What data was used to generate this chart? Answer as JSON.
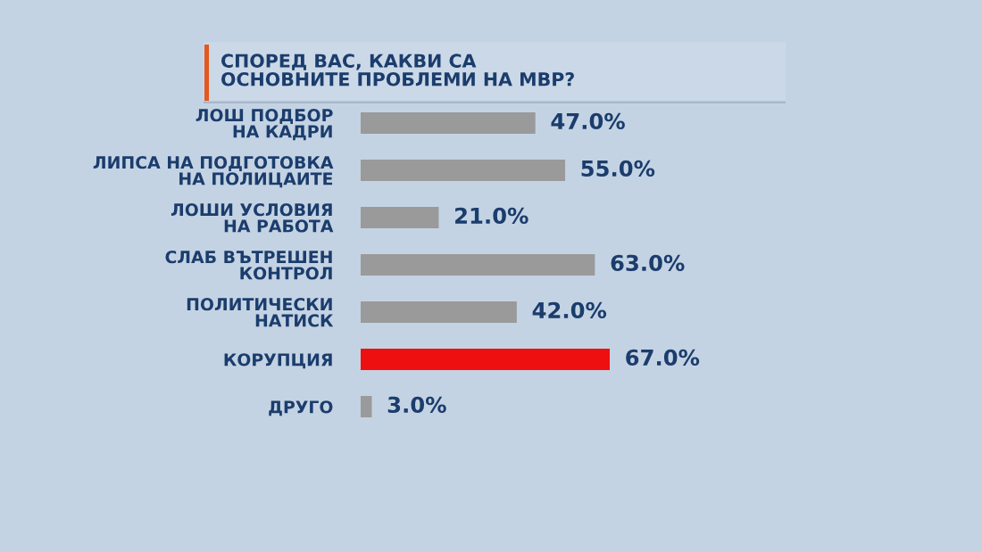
{
  "chart_data": {
    "type": "bar",
    "orientation": "horizontal",
    "title": "СПОРЕД ВАС, КАКВИ СА\nОСНОВНИТЕ ПРОБЛЕМИ НА МВР?",
    "categories": [
      "ЛОШ ПОДБОР\nНА КАДРИ",
      "ЛИПСА НА ПОДГОТОВКА\nНА ПОЛИЦАИТЕ",
      "ЛОШИ УСЛОВИЯ\nНА РАБОТА",
      "СЛАБ ВЪТРЕШЕН\nКОНТРОЛ",
      "ПОЛИТИЧЕСКИ\nНАТИСК",
      "КОРУПЦИЯ",
      "ДРУГО"
    ],
    "values": [
      47,
      55,
      21,
      63,
      42,
      67,
      3
    ],
    "colors": [
      "#9a9a9a",
      "#9a9a9a",
      "#9a9a9a",
      "#9a9a9a",
      "#9a9a9a",
      "#ee1010",
      "#9a9a9a"
    ],
    "value_labels": [
      "47.0%",
      "55.0%",
      "21.0%",
      "63.0%",
      "42.0%",
      "67.0%",
      "3.0%"
    ],
    "tick_labels": "y"
  }
}
